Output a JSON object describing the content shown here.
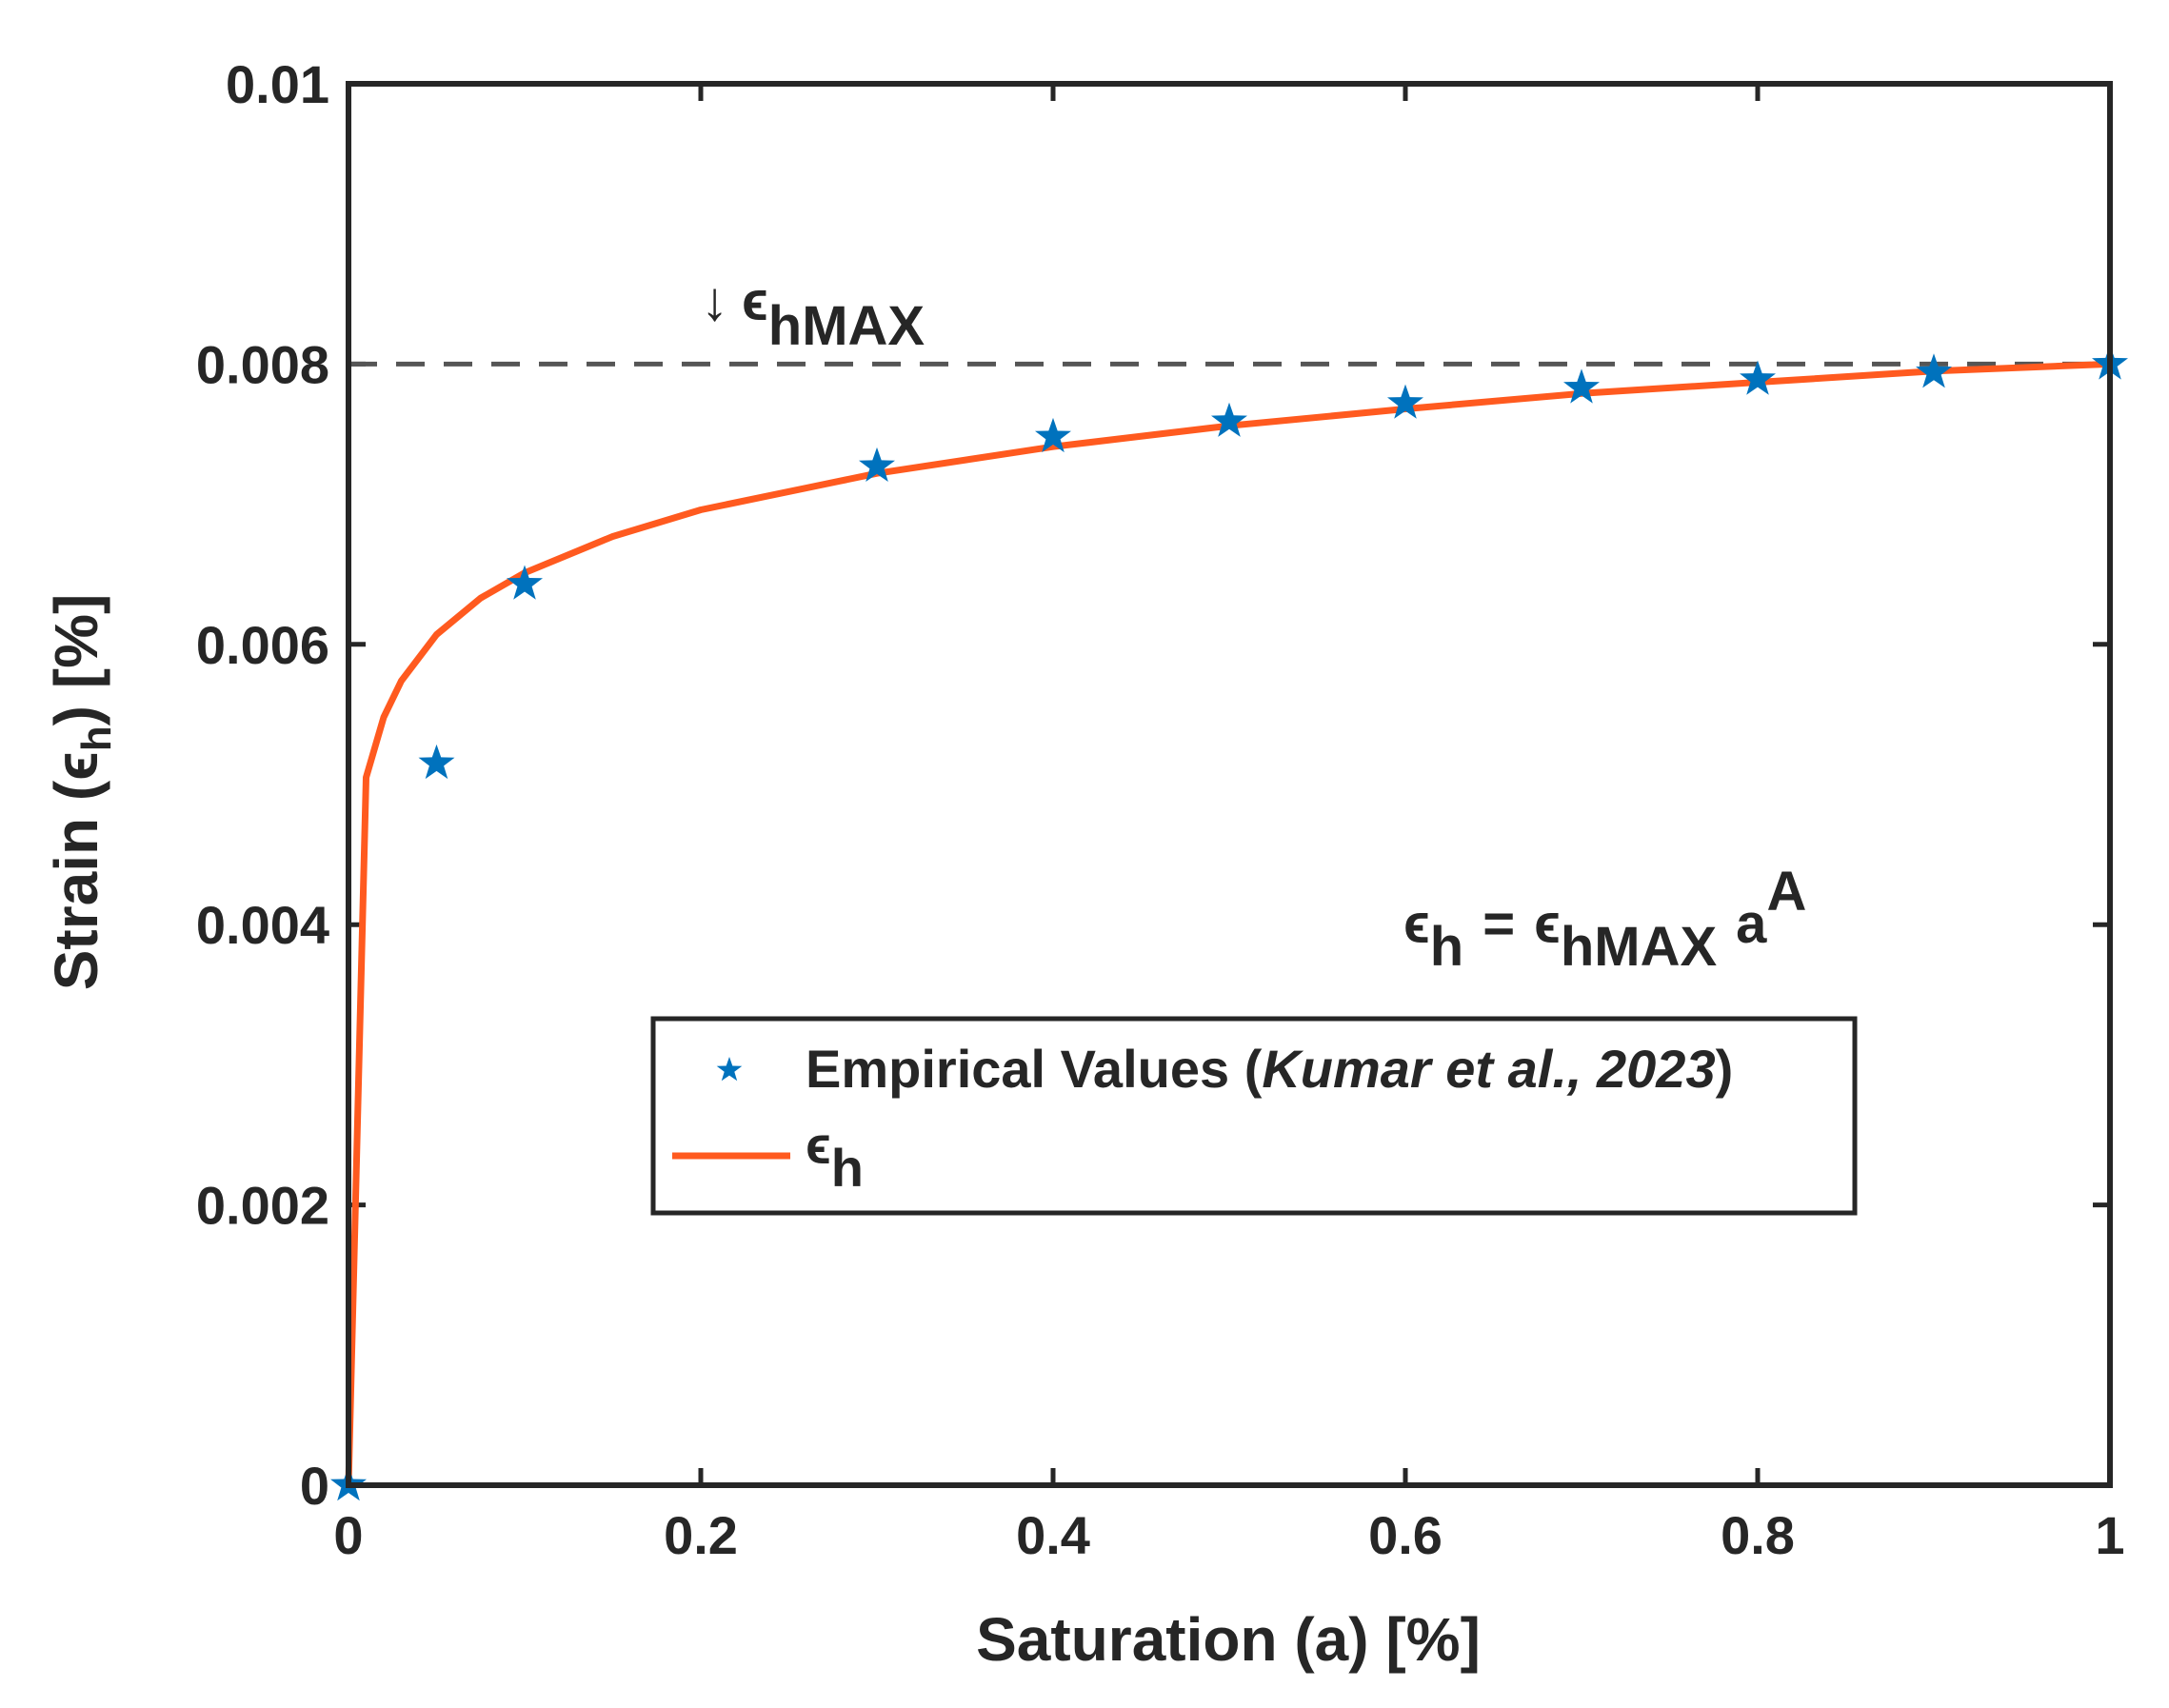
{
  "chart_data": {
    "type": "scatter",
    "xlabel": {
      "text": "Saturation (a) [%]"
    },
    "ylabel": {
      "prefix": "Strain (",
      "symbol": "ϵ",
      "sub": "h",
      "suffix": ") [%]"
    },
    "xlim": [
      0,
      1
    ],
    "ylim": [
      0,
      0.01
    ],
    "xticks": [
      0,
      0.2,
      0.4,
      0.6,
      0.8,
      1
    ],
    "xtick_labels": [
      "0",
      "0.2",
      "0.4",
      "0.6",
      "0.8",
      "1"
    ],
    "yticks": [
      0,
      0.002,
      0.004,
      0.006,
      0.008,
      0.01
    ],
    "ytick_labels": [
      "0",
      "0.002",
      "0.004",
      "0.006",
      "0.008",
      "0.01"
    ],
    "grid": false,
    "legend_position": "center",
    "hline": {
      "y": 0.008,
      "style": "dashed",
      "color": "#555555"
    },
    "series": [
      {
        "name": "Empirical Values (Kumar et al., 2023)",
        "kind": "scatter",
        "marker": "star",
        "color": "#0072BD",
        "x": [
          0,
          0.05,
          0.1,
          0.3,
          0.4,
          0.5,
          0.6,
          0.7,
          0.8,
          0.9,
          1.0
        ],
        "y": [
          0,
          0.00515,
          0.00643,
          0.00727,
          0.00748,
          0.00759,
          0.00772,
          0.00783,
          0.00789,
          0.00794,
          0.008
        ]
      },
      {
        "name": "ϵh",
        "kind": "line",
        "color": "#FF5A1F",
        "x": [
          0,
          0.01,
          0.02,
          0.03,
          0.05,
          0.075,
          0.1,
          0.15,
          0.2,
          0.3,
          0.4,
          0.5,
          0.6,
          0.7,
          0.8,
          0.9,
          1.0
        ],
        "y": [
          0,
          0.00505,
          0.00548,
          0.00574,
          0.00607,
          0.00633,
          0.00651,
          0.00677,
          0.00696,
          0.00722,
          0.00741,
          0.00756,
          0.00768,
          0.00779,
          0.00787,
          0.00795,
          0.008
        ]
      }
    ],
    "legend": {
      "entries": [
        {
          "prefix": "Empirical Values (",
          "italic": "Kumar et al., 2023",
          "suffix": ")"
        },
        {
          "symbol": "ϵ",
          "sub": "h"
        }
      ]
    },
    "annotations": {
      "max_label": {
        "arrow": "↓",
        "symbol": "ϵ",
        "sub": "hMAX"
      },
      "equation": {
        "lhs_symbol": "ϵ",
        "lhs_sub": "h",
        "eq": "=",
        "rhs_symbol": "ϵ",
        "rhs_sub": "hMAX",
        "base": "a",
        "sup": "A"
      }
    }
  }
}
